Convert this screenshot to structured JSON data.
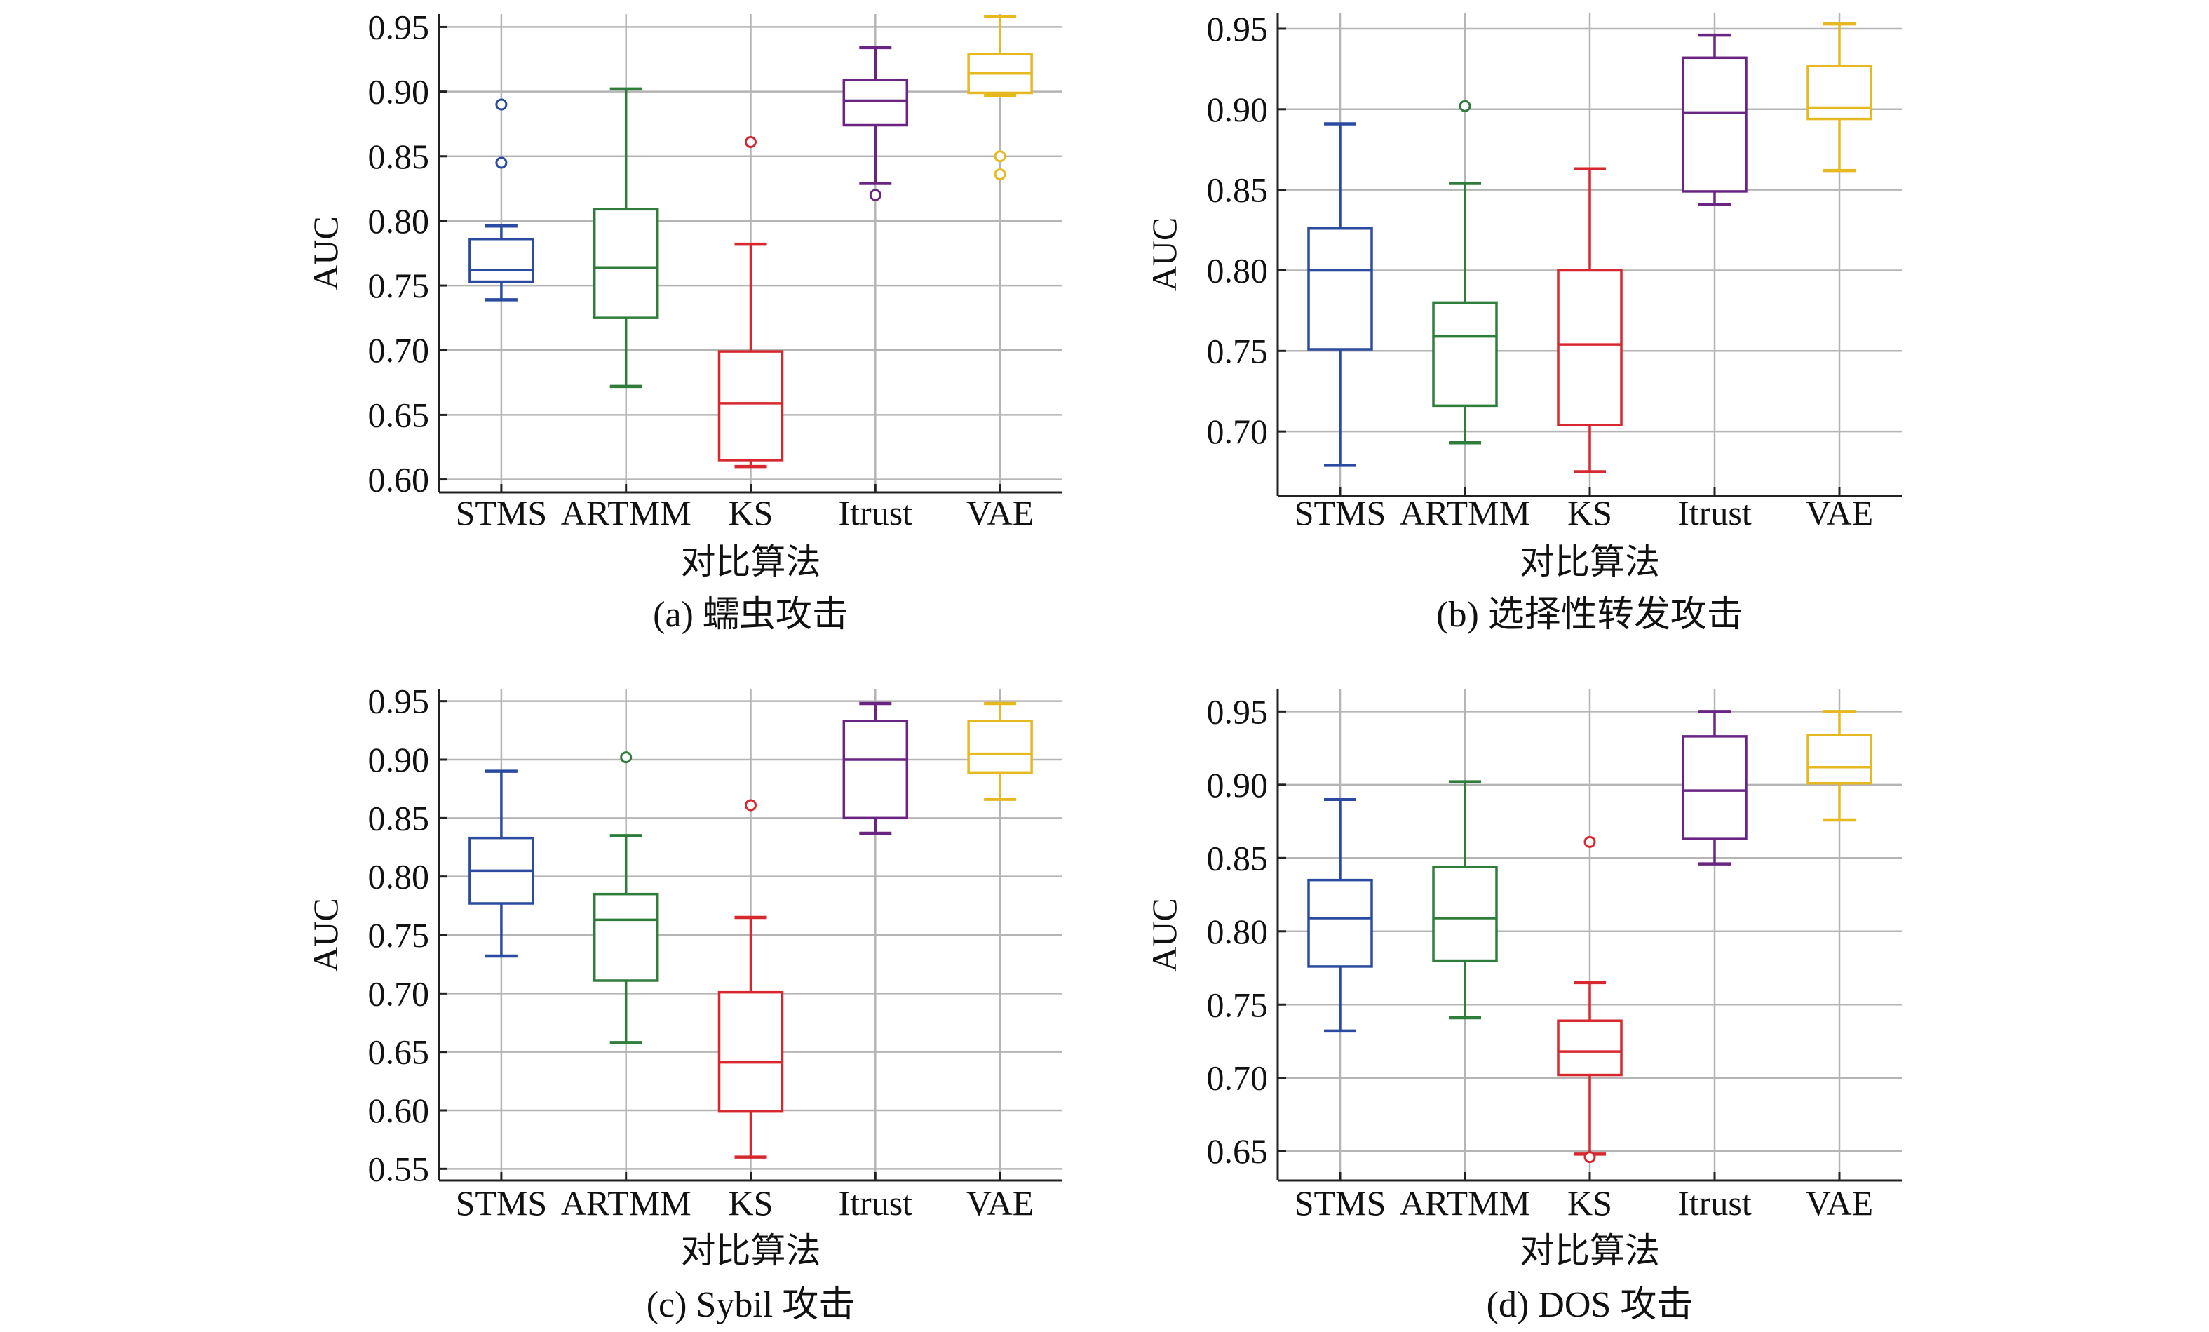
{
  "chart_data": [
    {
      "type": "box",
      "caption": "(a) 蠕虫攻击",
      "xlabel": "对比算法",
      "ylabel": "AUC",
      "ylim": [
        0.59,
        0.96
      ],
      "yticks": [
        0.6,
        0.65,
        0.7,
        0.75,
        0.8,
        0.85,
        0.9,
        0.95
      ],
      "grid": true,
      "categories": [
        "STMS",
        "ARTMM",
        "KS",
        "Itrust",
        "VAE"
      ],
      "boxes": [
        {
          "name": "STMS",
          "min": 0.739,
          "q1": 0.753,
          "median": 0.762,
          "q3": 0.786,
          "max": 0.796,
          "outliers": [
            0.845,
            0.89
          ]
        },
        {
          "name": "ARTMM",
          "min": 0.672,
          "q1": 0.725,
          "median": 0.764,
          "q3": 0.809,
          "max": 0.902,
          "outliers": []
        },
        {
          "name": "KS",
          "min": 0.61,
          "q1": 0.615,
          "median": 0.659,
          "q3": 0.699,
          "max": 0.782,
          "outliers": [
            0.861
          ]
        },
        {
          "name": "Itrust",
          "min": 0.829,
          "q1": 0.874,
          "median": 0.893,
          "q3": 0.909,
          "max": 0.934,
          "outliers": [
            0.82
          ]
        },
        {
          "name": "VAE",
          "min": 0.897,
          "q1": 0.899,
          "median": 0.914,
          "q3": 0.929,
          "max": 0.958,
          "outliers": [
            0.836,
            0.85
          ]
        }
      ]
    },
    {
      "type": "box",
      "caption": "(b) 选择性转发攻击",
      "xlabel": "对比算法",
      "ylabel": "AUC",
      "ylim": [
        0.66,
        0.96
      ],
      "yticks": [
        0.7,
        0.75,
        0.8,
        0.85,
        0.9,
        0.95
      ],
      "grid": true,
      "categories": [
        "STMS",
        "ARTMM",
        "KS",
        "Itrust",
        "VAE"
      ],
      "boxes": [
        {
          "name": "STMS",
          "min": 0.679,
          "q1": 0.751,
          "median": 0.8,
          "q3": 0.826,
          "max": 0.891,
          "outliers": []
        },
        {
          "name": "ARTMM",
          "min": 0.693,
          "q1": 0.716,
          "median": 0.759,
          "q3": 0.78,
          "max": 0.854,
          "outliers": [
            0.902
          ]
        },
        {
          "name": "KS",
          "min": 0.675,
          "q1": 0.704,
          "median": 0.754,
          "q3": 0.8,
          "max": 0.863,
          "outliers": []
        },
        {
          "name": "Itrust",
          "min": 0.841,
          "q1": 0.849,
          "median": 0.898,
          "q3": 0.932,
          "max": 0.946,
          "outliers": []
        },
        {
          "name": "VAE",
          "min": 0.862,
          "q1": 0.894,
          "median": 0.901,
          "q3": 0.927,
          "max": 0.953,
          "outliers": []
        }
      ]
    },
    {
      "type": "box",
      "caption": "(c) Sybil 攻击",
      "xlabel": "对比算法",
      "ylabel": "AUC",
      "ylim": [
        0.54,
        0.96
      ],
      "yticks": [
        0.55,
        0.6,
        0.65,
        0.7,
        0.75,
        0.8,
        0.85,
        0.9,
        0.95
      ],
      "grid": true,
      "categories": [
        "STMS",
        "ARTMM",
        "KS",
        "Itrust",
        "VAE"
      ],
      "boxes": [
        {
          "name": "STMS",
          "min": 0.732,
          "q1": 0.777,
          "median": 0.805,
          "q3": 0.833,
          "max": 0.89,
          "outliers": []
        },
        {
          "name": "ARTMM",
          "min": 0.658,
          "q1": 0.711,
          "median": 0.763,
          "q3": 0.785,
          "max": 0.835,
          "outliers": [
            0.902
          ]
        },
        {
          "name": "KS",
          "min": 0.56,
          "q1": 0.599,
          "median": 0.641,
          "q3": 0.701,
          "max": 0.765,
          "outliers": [
            0.861
          ]
        },
        {
          "name": "Itrust",
          "min": 0.837,
          "q1": 0.85,
          "median": 0.9,
          "q3": 0.933,
          "max": 0.948,
          "outliers": []
        },
        {
          "name": "VAE",
          "min": 0.866,
          "q1": 0.889,
          "median": 0.905,
          "q3": 0.933,
          "max": 0.948,
          "outliers": []
        }
      ]
    },
    {
      "type": "box",
      "caption": "(d) DOS 攻击",
      "xlabel": "对比算法",
      "ylabel": "AUC",
      "ylim": [
        0.63,
        0.965
      ],
      "yticks": [
        0.65,
        0.7,
        0.75,
        0.8,
        0.85,
        0.9,
        0.95
      ],
      "grid": true,
      "categories": [
        "STMS",
        "ARTMM",
        "KS",
        "Itrust",
        "VAE"
      ],
      "boxes": [
        {
          "name": "STMS",
          "min": 0.732,
          "q1": 0.776,
          "median": 0.809,
          "q3": 0.835,
          "max": 0.89,
          "outliers": []
        },
        {
          "name": "ARTMM",
          "min": 0.741,
          "q1": 0.78,
          "median": 0.809,
          "q3": 0.844,
          "max": 0.902,
          "outliers": []
        },
        {
          "name": "KS",
          "min": 0.648,
          "q1": 0.702,
          "median": 0.718,
          "q3": 0.739,
          "max": 0.765,
          "outliers": [
            0.646,
            0.861
          ]
        },
        {
          "name": "Itrust",
          "min": 0.846,
          "q1": 0.863,
          "median": 0.896,
          "q3": 0.933,
          "max": 0.95,
          "outliers": []
        },
        {
          "name": "VAE",
          "min": 0.876,
          "q1": 0.901,
          "median": 0.912,
          "q3": 0.934,
          "max": 0.95,
          "outliers": []
        }
      ]
    }
  ],
  "series_colors": {
    "STMS": "#2b4ba0",
    "ARTMM": "#2e7d3a",
    "KS": "#d6282e",
    "Itrust": "#6a2583",
    "VAE": "#e5b91f"
  }
}
